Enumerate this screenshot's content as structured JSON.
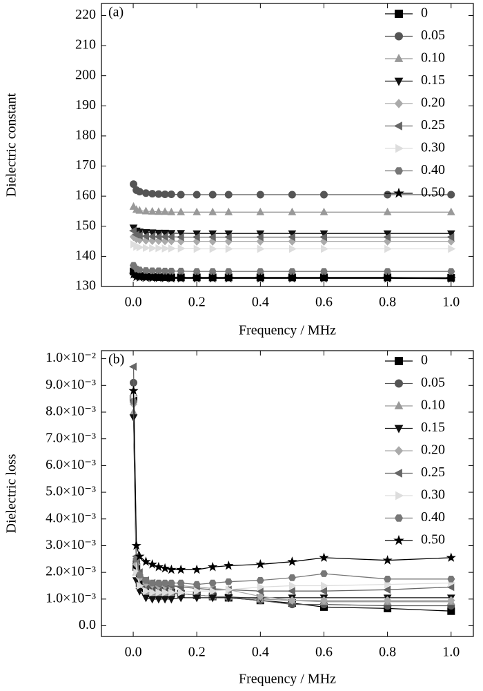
{
  "chart_data": [
    {
      "type": "line",
      "annotation": "(a)",
      "x_label": "Frequency / MHz",
      "y_label": "Dielectric constant",
      "x": [
        0.001,
        0.01,
        0.02,
        0.04,
        0.06,
        0.08,
        0.1,
        0.12,
        0.15,
        0.2,
        0.25,
        0.3,
        0.4,
        0.5,
        0.6,
        0.8,
        1.0
      ],
      "xlim": [
        -0.1,
        1.07
      ],
      "xticks": [
        {
          "value": 0,
          "label": "0.0"
        },
        0.2,
        0.4,
        0.6,
        0.8,
        {
          "value": 1,
          "label": "1.0"
        }
      ],
      "ylim": [
        130,
        224
      ],
      "yticks": [
        130,
        140,
        150,
        160,
        170,
        180,
        190,
        200,
        210,
        220
      ],
      "legend": "upper right",
      "series": [
        {
          "name": "0",
          "color": "#000000",
          "marker": "square",
          "values": [
            135,
            134,
            133.5,
            133.3,
            133.2,
            133.1,
            133.1,
            133,
            133,
            133,
            133,
            133,
            133,
            133,
            133,
            133,
            132.9
          ]
        },
        {
          "name": "0.05",
          "color": "#555555",
          "marker": "circle",
          "values": [
            164,
            162,
            161.5,
            161,
            160.8,
            160.7,
            160.6,
            160.6,
            160.5,
            160.5,
            160.5,
            160.5,
            160.5,
            160.5,
            160.5,
            160.5,
            160.5
          ]
        },
        {
          "name": "0.10",
          "color": "#999999",
          "marker": "triangle-up",
          "values": [
            156.5,
            155.5,
            155.2,
            155,
            154.9,
            154.8,
            154.8,
            154.7,
            154.7,
            154.7,
            154.7,
            154.7,
            154.7,
            154.7,
            154.7,
            154.7,
            154.7
          ]
        },
        {
          "name": "0.15",
          "color": "#111111",
          "marker": "triangle-down",
          "values": [
            149.5,
            148.5,
            148.2,
            148,
            147.9,
            147.8,
            147.8,
            147.7,
            147.7,
            147.6,
            147.6,
            147.6,
            147.6,
            147.6,
            147.6,
            147.6,
            147.6
          ]
        },
        {
          "name": "0.20",
          "color": "#aaaaaa",
          "marker": "diamond",
          "values": [
            146.5,
            145.8,
            145.5,
            145.3,
            145.2,
            145.2,
            145.1,
            145.1,
            145,
            145,
            145,
            145,
            145,
            145,
            145,
            145,
            145
          ]
        },
        {
          "name": "0.25",
          "color": "#666666",
          "marker": "triangle-left",
          "values": [
            148.5,
            147.2,
            146.9,
            146.7,
            146.6,
            146.5,
            146.5,
            146.5,
            146.4,
            146.4,
            146.4,
            146.4,
            146.4,
            146.4,
            146.4,
            146.4,
            146.4
          ]
        },
        {
          "name": "0.30",
          "color": "#dddddd",
          "marker": "triangle-right",
          "values": [
            144,
            143.2,
            143,
            142.8,
            142.7,
            142.7,
            142.6,
            142.6,
            142.6,
            142.5,
            142.5,
            142.5,
            142.5,
            142.5,
            142.5,
            142.5,
            142.5
          ]
        },
        {
          "name": "0.40",
          "color": "#777777",
          "marker": "hexagon",
          "values": [
            137,
            135.8,
            135.5,
            135.3,
            135.2,
            135.2,
            135.1,
            135.1,
            135.1,
            135,
            135,
            135,
            135,
            135,
            135,
            135,
            135
          ]
        },
        {
          "name": "0.50",
          "color": "#000000",
          "marker": "star",
          "values": [
            134,
            133.2,
            133,
            132.9,
            132.8,
            132.8,
            132.8,
            132.7,
            132.7,
            132.7,
            132.7,
            132.7,
            132.7,
            132.7,
            132.7,
            132.7,
            132.6
          ]
        }
      ]
    },
    {
      "type": "line",
      "annotation": "(b)",
      "x_label": "Frequency / MHz",
      "y_label": "Dielectric loss",
      "x": [
        0.001,
        0.01,
        0.02,
        0.04,
        0.06,
        0.08,
        0.1,
        0.12,
        0.15,
        0.2,
        0.25,
        0.3,
        0.4,
        0.5,
        0.6,
        0.8,
        1.0
      ],
      "xlim": [
        -0.1,
        1.07
      ],
      "xticks": [
        {
          "value": 0,
          "label": "0.0"
        },
        0.2,
        0.4,
        0.6,
        0.8,
        {
          "value": 1,
          "label": "1.0"
        }
      ],
      "ylim": [
        -0.0004,
        0.0103
      ],
      "yticks": [
        {
          "value": 0,
          "label": "0.0"
        },
        {
          "value": 0.001,
          "label": "1.0×10⁻³"
        },
        {
          "value": 0.002,
          "label": "2.0×10⁻³"
        },
        {
          "value": 0.003,
          "label": "3.0×10⁻³"
        },
        {
          "value": 0.004,
          "label": "4.0×10⁻³"
        },
        {
          "value": 0.005,
          "label": "5.0×10⁻³"
        },
        {
          "value": 0.006,
          "label": "6.0×10⁻³"
        },
        {
          "value": 0.007,
          "label": "7.0×10⁻³"
        },
        {
          "value": 0.008,
          "label": "8.0×10⁻³"
        },
        {
          "value": 0.009,
          "label": "9.0×10⁻³"
        },
        {
          "value": 0.01,
          "label": "1.0×10⁻²"
        }
      ],
      "legend": "upper right",
      "series": [
        {
          "name": "0",
          "color": "#000000",
          "marker": "square",
          "values": [
            0.0085,
            0.0022,
            0.0016,
            0.0014,
            0.00135,
            0.0013,
            0.0013,
            0.00125,
            0.0012,
            0.00115,
            0.0011,
            0.00105,
            0.00095,
            0.00085,
            0.0007,
            0.00065,
            0.00055
          ]
        },
        {
          "name": "0.05",
          "color": "#555555",
          "marker": "circle",
          "values": [
            0.0091,
            0.0024,
            0.0018,
            0.0015,
            0.0014,
            0.00135,
            0.0013,
            0.00125,
            0.0012,
            0.00115,
            0.0011,
            0.00105,
            0.00095,
            0.0008,
            0.0008,
            0.00075,
            0.00075
          ]
        },
        {
          "name": "0.10",
          "color": "#999999",
          "marker": "triangle-up",
          "values": [
            0.008,
            0.002,
            0.0015,
            0.0013,
            0.00125,
            0.0012,
            0.0012,
            0.0012,
            0.0012,
            0.00115,
            0.0011,
            0.0011,
            0.001,
            0.00095,
            0.0009,
            0.0009,
            0.0009
          ]
        },
        {
          "name": "0.15",
          "color": "#111111",
          "marker": "triangle-down",
          "values": [
            0.0078,
            0.0017,
            0.0013,
            0.00105,
            0.001,
            0.001,
            0.001,
            0.001,
            0.00105,
            0.00105,
            0.00105,
            0.00105,
            0.00105,
            0.00105,
            0.00105,
            0.00105,
            0.00105
          ]
        },
        {
          "name": "0.20",
          "color": "#aaaaaa",
          "marker": "diamond",
          "values": [
            0.0083,
            0.0023,
            0.0018,
            0.0016,
            0.00155,
            0.0015,
            0.0015,
            0.0015,
            0.0015,
            0.00145,
            0.0014,
            0.00135,
            0.0011,
            0.00095,
            0.00095,
            0.00095,
            0.00095
          ]
        },
        {
          "name": "0.25",
          "color": "#666666",
          "marker": "triangle-left",
          "values": [
            0.0097,
            0.0026,
            0.002,
            0.0017,
            0.0016,
            0.00155,
            0.00155,
            0.0015,
            0.00145,
            0.0014,
            0.00135,
            0.00135,
            0.0013,
            0.0013,
            0.0013,
            0.00135,
            0.00145
          ]
        },
        {
          "name": "0.30",
          "color": "#dddddd",
          "marker": "triangle-right",
          "values": [
            0.0086,
            0.002,
            0.0015,
            0.0013,
            0.00125,
            0.00125,
            0.00125,
            0.00125,
            0.00125,
            0.0013,
            0.0013,
            0.00135,
            0.00145,
            0.0015,
            0.0015,
            0.00155,
            0.0016
          ]
        },
        {
          "name": "0.40",
          "color": "#777777",
          "marker": "hexagon",
          "values": [
            0.0084,
            0.0025,
            0.0019,
            0.0017,
            0.0016,
            0.0016,
            0.0016,
            0.0016,
            0.0016,
            0.00155,
            0.0016,
            0.00165,
            0.0017,
            0.0018,
            0.00195,
            0.00175,
            0.00175
          ]
        },
        {
          "name": "0.50",
          "color": "#000000",
          "marker": "star",
          "values": [
            0.0088,
            0.003,
            0.0026,
            0.0024,
            0.0023,
            0.0022,
            0.00215,
            0.0021,
            0.0021,
            0.0021,
            0.0022,
            0.00225,
            0.0023,
            0.0024,
            0.00255,
            0.00245,
            0.00255
          ]
        }
      ]
    }
  ]
}
